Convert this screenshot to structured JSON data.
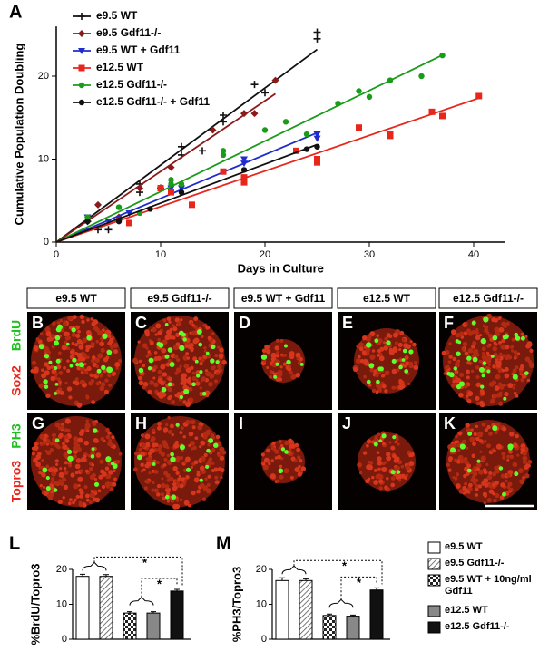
{
  "chart_data": [
    {
      "type": "scatter",
      "panel_label": "A",
      "ylabel": "Cumulative Population Doubling",
      "xlabel": "Days in Culture",
      "xlim": [
        0,
        43
      ],
      "ylim": [
        0,
        26
      ],
      "xticks": [
        0,
        10,
        20,
        30,
        40
      ],
      "yticks": [
        0,
        10,
        20
      ],
      "series": [
        {
          "name": "e9.5 WT",
          "color": "#111111",
          "marker": "plus",
          "x": [
            3,
            4,
            5,
            8,
            8,
            10,
            12,
            12,
            14,
            16,
            16,
            19,
            20,
            25,
            25
          ],
          "values": [
            2.5,
            1.5,
            1.5,
            6,
            7,
            6.5,
            10.5,
            11.5,
            11,
            14.5,
            15.3,
            19,
            18,
            24.5,
            25.3
          ]
        },
        {
          "name": "e9.5 Gdf11-/-",
          "color": "#8b1a1a",
          "marker": "diamond",
          "x": [
            4,
            6,
            8,
            10,
            11,
            15,
            18,
            19,
            21
          ],
          "values": [
            4.5,
            3,
            6.5,
            6.5,
            9,
            13.5,
            15.5,
            15.5,
            19.5
          ]
        },
        {
          "name": "e9.5 WT + Gdf11",
          "color": "#1f2bcc",
          "marker": "triangle",
          "x": [
            3,
            5,
            7,
            11,
            12,
            18,
            18,
            25,
            25
          ],
          "values": [
            3,
            2.5,
            3.5,
            6.5,
            6.5,
            9.5,
            10,
            13,
            12.5
          ]
        },
        {
          "name": "e12.5 WT",
          "color": "#e8261c",
          "marker": "square",
          "x": [
            7,
            10,
            11,
            13,
            16,
            18,
            18,
            23,
            25,
            25,
            29,
            32,
            32,
            36,
            37,
            40.5
          ],
          "values": [
            2.3,
            6.5,
            6,
            4.5,
            8.5,
            7.2,
            7.8,
            11,
            10,
            9.6,
            13.8,
            12.8,
            13,
            15.7,
            15.2,
            17.6
          ]
        },
        {
          "name": "e12.5 Gdf11-/-",
          "color": "#1a9b1a",
          "marker": "circle",
          "x": [
            3,
            6,
            8,
            11,
            11,
            12,
            16,
            16,
            20,
            22,
            24,
            27,
            29,
            30,
            32,
            35,
            37
          ],
          "values": [
            3,
            4.2,
            3.5,
            7.5,
            7,
            7,
            10.5,
            11,
            13.5,
            14.5,
            13,
            16.7,
            18.2,
            17.5,
            19.5,
            20,
            22.5
          ]
        },
        {
          "name": "e12.5 Gdf11-/- + Gdf11",
          "color": "#111111",
          "marker": "dot",
          "x": [
            3,
            6,
            9,
            12,
            18,
            24,
            25
          ],
          "values": [
            2.5,
            2.5,
            4,
            6,
            8.7,
            11.2,
            11.5
          ]
        }
      ]
    },
    {
      "type": "bar",
      "panel_label": "L",
      "ylabel": "%BrdU/Topro3",
      "ylim": [
        0,
        20
      ],
      "yticks": [
        0,
        10,
        20
      ],
      "annotations": [
        "*",
        "*"
      ],
      "series": [
        {
          "name": "e9.5 WT",
          "fill": "white",
          "values": [
            18
          ],
          "errors": [
            0.6
          ]
        },
        {
          "name": "e9.5 Gdf11-/-",
          "fill": "hatch",
          "values": [
            18
          ],
          "errors": [
            0.5
          ]
        },
        {
          "name": "e9.5 WT + 10ng/ml Gdf11",
          "fill": "checker",
          "values": [
            7.5
          ],
          "errors": [
            0.4
          ]
        },
        {
          "name": "e12.5 WT",
          "fill": "#888888",
          "values": [
            7.5
          ],
          "errors": [
            0.4
          ]
        },
        {
          "name": "e12.5 Gdf11-/-",
          "fill": "#111111",
          "values": [
            13.8
          ],
          "errors": [
            0.5
          ]
        }
      ]
    },
    {
      "type": "bar",
      "panel_label": "M",
      "ylabel": "%PH3/Topro3",
      "ylim": [
        0,
        20
      ],
      "yticks": [
        0,
        10,
        20
      ],
      "annotations": [
        "*",
        "*"
      ],
      "series": [
        {
          "fill": "white",
          "values": [
            16.8
          ],
          "errors": [
            0.8
          ]
        },
        {
          "fill": "hatch",
          "values": [
            16.8
          ],
          "errors": [
            0.5
          ]
        },
        {
          "fill": "checker",
          "values": [
            6.8
          ],
          "errors": [
            0.4
          ]
        },
        {
          "fill": "#888888",
          "values": [
            6.6
          ],
          "errors": [
            0.3
          ]
        },
        {
          "fill": "#111111",
          "values": [
            14.1
          ],
          "errors": [
            0.6
          ]
        }
      ]
    }
  ],
  "image_panels": {
    "columns": [
      "e9.5 WT",
      "e9.5 Gdf11-/-",
      "e9.5 WT + Gdf11",
      "e12.5 WT",
      "e12.5 Gdf11-/-"
    ],
    "rows": [
      [
        "BrdU",
        "Sox2"
      ],
      [
        "PH3",
        "Topro3"
      ]
    ],
    "labels": [
      [
        "B",
        "C",
        "D",
        "E",
        "F"
      ],
      [
        "G",
        "H",
        "I",
        "J",
        "K"
      ]
    ]
  }
}
